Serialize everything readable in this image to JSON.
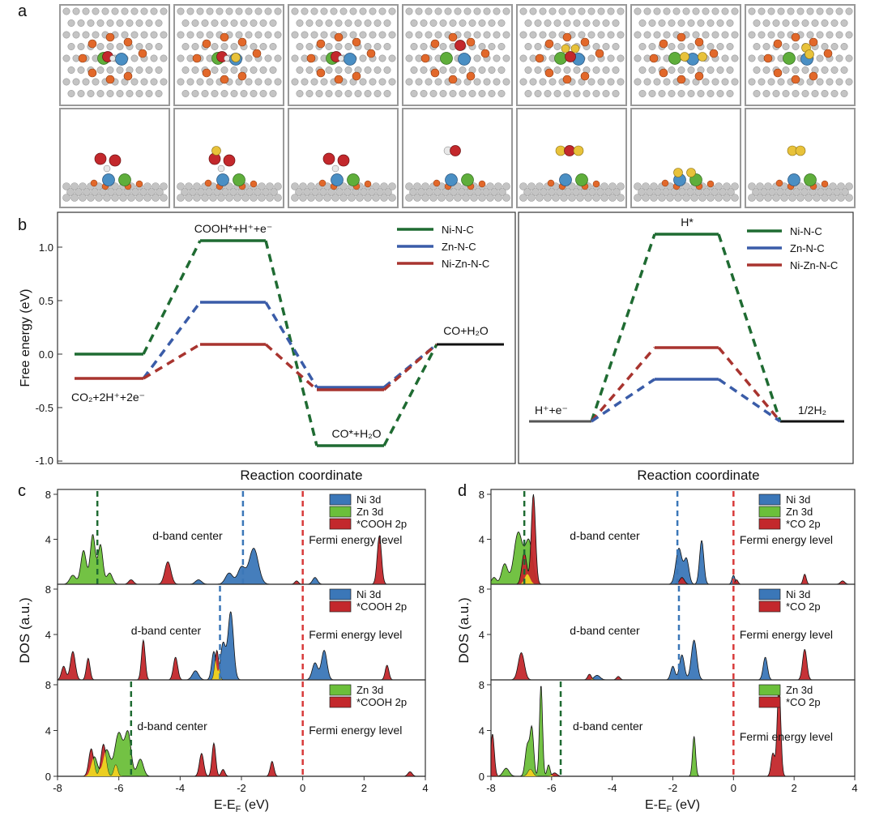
{
  "panel_labels": {
    "a": "a",
    "b": "b",
    "c": "c",
    "d": "d"
  },
  "colors": {
    "ni": "#1f6b32",
    "zn": "#3a5ca8",
    "nizn": "#a8342f",
    "ni3d": "#3b77b8",
    "zn3d": "#6bbf3a",
    "ads2p": "#c3282c",
    "fermi": "#d83a3a",
    "overlap": "#f0e020"
  },
  "panel_a": {
    "atom_colors": {
      "carbon": "#c4c4c4",
      "nitrogen": "#e2682a",
      "nickel": "#5fae3b",
      "zinc": "#4a8fc4",
      "oxygen": "#c3282c",
      "hydrogen": "#e8e8e8",
      "h_ads": "#e8c23a"
    },
    "frames": [
      {
        "adsorbate": "COOH"
      },
      {
        "adsorbate": "COOH+H"
      },
      {
        "adsorbate": "COOH"
      },
      {
        "adsorbate": "CO"
      },
      {
        "adsorbate": "CO+2H"
      },
      {
        "adsorbate": "2H"
      },
      {
        "adsorbate": "H2"
      }
    ]
  },
  "panel_b": {
    "ylabel": "Free energy (eV)",
    "xlabel_left": "Reaction coordinate",
    "xlabel_right": "Reaction coordinate",
    "yticks": [
      "1.0",
      "0.5",
      "0.0",
      "-0.5",
      "-1.0"
    ],
    "legend": [
      "Ni-N-C",
      "Zn-N-C",
      "Ni-Zn-N-C"
    ],
    "left_labels": {
      "cooh": "COOH*+H⁺+e⁻",
      "start": "CO₂+2H⁺+2e⁻",
      "coh2o": "CO+H₂O",
      "costar": "CO*+H₂O"
    },
    "right_labels": {
      "hstar": "H*",
      "start": "H⁺+e⁻",
      "end": "1/2H₂"
    },
    "chart_data": [
      {
        "type": "line",
        "xlabel": "Reaction coordinate",
        "ylabel": "Free energy (eV)",
        "ylim": [
          -1.0,
          1.25
        ],
        "series": [
          {
            "name": "Ni-N-C",
            "values": [
              0.0,
              1.06,
              -0.86,
              0.08
            ]
          },
          {
            "name": "Zn-N-C",
            "values": [
              -0.23,
              0.47,
              -0.32,
              0.08
            ]
          },
          {
            "name": "Ni-Zn-N-C",
            "values": [
              -0.23,
              0.09,
              -0.34,
              0.08
            ]
          }
        ]
      },
      {
        "type": "line",
        "xlabel": "Reaction coordinate",
        "series": [
          {
            "name": "Ni-N-C",
            "values": [
              0.0,
              1.37,
              0.0
            ]
          },
          {
            "name": "Zn-N-C",
            "values": [
              0.0,
              0.2,
              0.0
            ]
          },
          {
            "name": "Ni-Zn-N-C",
            "values": [
              0.0,
              0.37,
              0.0
            ]
          }
        ]
      }
    ]
  },
  "panel_c": {
    "ylabel": "DOS  (a.u.)",
    "xlabel": "E-E",
    "xlabel_sub": "F",
    "xlabel_unit": " (eV)",
    "xticks": [
      "-8",
      "-6",
      "-4",
      "-2",
      "0",
      "2",
      "4"
    ],
    "yticks": [
      "8",
      "4",
      "0"
    ],
    "rows": [
      {
        "legend": [
          "Ni 3d",
          "Zn 3d",
          "*COOH 2p"
        ],
        "dband": "d-band center",
        "fermi": "Fermi energy level",
        "dband_x": -6.7
      },
      {
        "legend": [
          "Ni 3d",
          "*COOH 2p"
        ],
        "dband": "d-band center",
        "fermi": "Fermi energy level",
        "dband_x": -2.7
      },
      {
        "legend": [
          "Zn 3d",
          "*COOH 2p"
        ],
        "dband": "d-band center",
        "fermi": "Fermi energy level",
        "dband_x": -5.6
      }
    ],
    "chart_data": {
      "type": "area",
      "xlim": [
        -8,
        4
      ],
      "ylim": [
        0,
        8
      ]
    }
  },
  "panel_d": {
    "ylabel": "DOS  (a.u.)",
    "xlabel": "E-E",
    "xlabel_sub": "F",
    "xlabel_unit": " (eV)",
    "xticks": [
      "-8",
      "-6",
      "-4",
      "-2",
      "0",
      "2",
      "4"
    ],
    "yticks": [
      "8",
      "4",
      "0"
    ],
    "rows": [
      {
        "legend": [
          "Ni 3d",
          "Zn 3d",
          "*CO 2p"
        ],
        "dband": "d-band center",
        "fermi": "Fermi energy level",
        "dband_x": -6.9
      },
      {
        "legend": [
          "Ni 3d",
          "*CO 2p"
        ],
        "dband": "d-band center",
        "fermi": "Fermi energy level",
        "dband_x": -1.8
      },
      {
        "legend": [
          "Zn 3d",
          "*CO 2p"
        ],
        "dband": "d-band center",
        "fermi": "Fermi energy level",
        "dband_x": -5.7
      }
    ],
    "chart_data": {
      "type": "area",
      "xlim": [
        -8,
        4
      ],
      "ylim": [
        0,
        8
      ]
    }
  }
}
